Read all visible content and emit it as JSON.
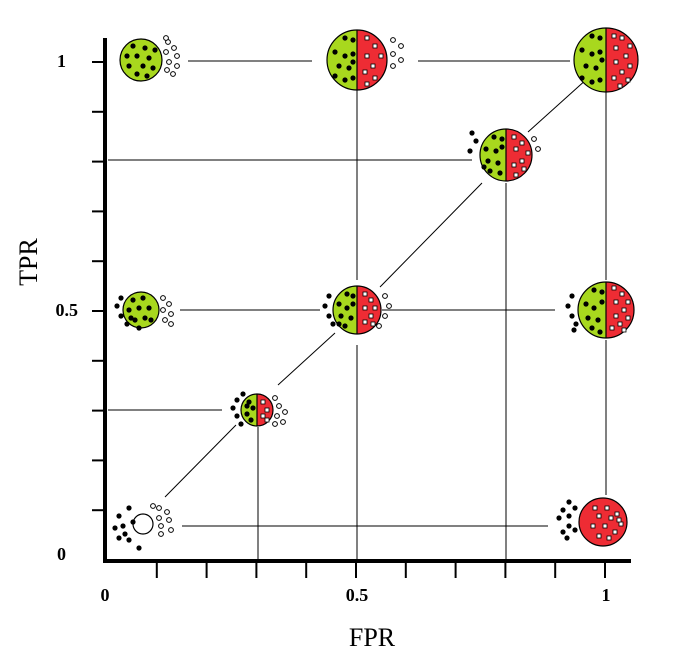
{
  "chart_data": {
    "type": "scatter",
    "xlabel": "FPR",
    "ylabel": "TPR",
    "xlim": [
      0,
      1
    ],
    "ylim": [
      0,
      1
    ],
    "x_tick_labels": [
      {
        "value": 0,
        "label": "0"
      },
      {
        "value": 0.5,
        "label": "0.5"
      },
      {
        "value": 1,
        "label": "1"
      }
    ],
    "y_tick_labels": [
      {
        "value": 0,
        "label": "0"
      },
      {
        "value": 0.5,
        "label": "0.5"
      },
      {
        "value": 1,
        "label": "1"
      }
    ],
    "minor_ticks": [
      0.1,
      0.2,
      0.3,
      0.4,
      0.5,
      0.6,
      0.7,
      0.8,
      0.9,
      1.0
    ],
    "colors": {
      "positive": "#a8d81e",
      "negative": "#ee2c34",
      "axis": "#000000"
    },
    "diagonal": {
      "from": [
        0,
        0
      ],
      "to": [
        1,
        1
      ]
    },
    "points": [
      {
        "fpr": 0,
        "tpr": 1
      },
      {
        "fpr": 0.5,
        "tpr": 1
      },
      {
        "fpr": 1,
        "tpr": 1
      },
      {
        "fpr": 0.8,
        "tpr": 0.8
      },
      {
        "fpr": 0,
        "tpr": 0.5
      },
      {
        "fpr": 0.5,
        "tpr": 0.5
      },
      {
        "fpr": 1,
        "tpr": 0.5
      },
      {
        "fpr": 0.3,
        "tpr": 0.3
      },
      {
        "fpr": 0,
        "tpr": 0
      },
      {
        "fpr": 1,
        "tpr": 0
      }
    ]
  }
}
